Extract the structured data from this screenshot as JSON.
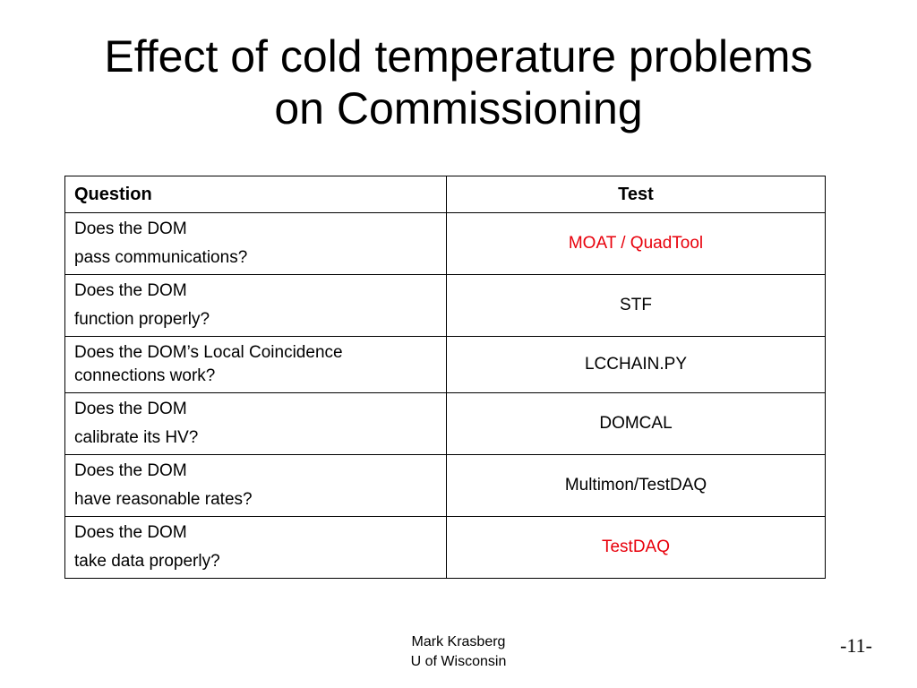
{
  "slide": {
    "title_line1": "Effect of cold temperature problems",
    "title_line2": "on Commissioning"
  },
  "table": {
    "headers": {
      "question": "Question",
      "test": "Test"
    },
    "rows": [
      {
        "q1": "Does the DOM",
        "q2": "pass communications?",
        "test": "MOAT / QuadTool",
        "test_color": "#e8000b"
      },
      {
        "q1": "Does the DOM",
        "q2": "function properly?",
        "test": "STF",
        "test_color": "#000000"
      },
      {
        "q1": "Does the DOM’s Local Coincidence",
        "q2": "connections work?",
        "test": "LCCHAIN.PY",
        "test_color": "#000000"
      },
      {
        "q1": "Does the DOM",
        "q2": "calibrate its HV?",
        "test": "DOMCAL",
        "test_color": "#000000"
      },
      {
        "q1": "Does the DOM",
        "q2": "have reasonable rates?",
        "test": "Multimon/TestDAQ",
        "test_color": "#000000"
      },
      {
        "q1": "Does the DOM",
        "q2": "take data properly?",
        "test": "TestDAQ",
        "test_color": "#e8000b"
      }
    ]
  },
  "footer": {
    "author": "Mark Krasberg",
    "affiliation": "U of Wisconsin",
    "page_number": "-11-"
  }
}
